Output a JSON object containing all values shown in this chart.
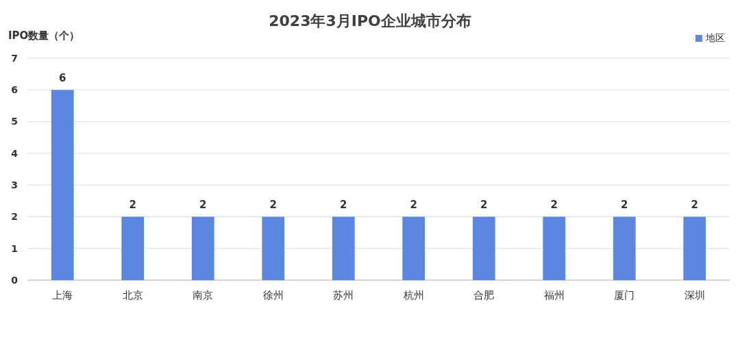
{
  "chart_data": {
    "type": "bar",
    "title": "2023年3月IPO企业城市分布",
    "ylabel": "IPO数量（个）",
    "categories": [
      "上海",
      "北京",
      "南京",
      "徐州",
      "苏州",
      "杭州",
      "合肥",
      "福州",
      "厦门",
      "深圳"
    ],
    "series": [
      {
        "name": "地区",
        "color": "#5b87e0",
        "values": [
          6,
          2,
          2,
          2,
          2,
          2,
          2,
          2,
          2,
          2
        ]
      }
    ],
    "ylim": [
      0,
      7
    ],
    "yticks": [
      0,
      1,
      2,
      3,
      4,
      5,
      6,
      7
    ],
    "grid": "y",
    "legend": "top right",
    "data_labels": true
  }
}
